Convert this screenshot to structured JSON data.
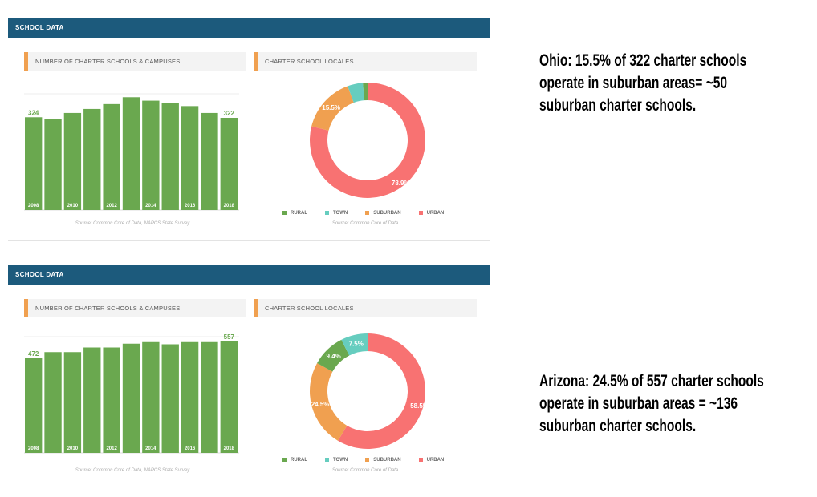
{
  "notes": {
    "ohio": [
      "Ohio: 15.5% of 322 charter schools",
      "operate in suburban areas= ~50",
      "suburban charter schools."
    ],
    "arizona": [
      "Arizona: 24.5% of 557 charter schools",
      "operate in suburban areas = ~136",
      "suburban charter schools."
    ]
  },
  "colors": {
    "header": "#1c5a7c",
    "bar": "#6aa84f",
    "rural": "#6aa84f",
    "town": "#66cdbf",
    "suburban": "#f0a050",
    "urban": "#f87272"
  },
  "panels": [
    {
      "header": "SCHOOL DATA",
      "bar_title": "NUMBER OF CHARTER SCHOOLS & CAMPUSES",
      "pie_title": "CHARTER SCHOOL LOCALES",
      "bar_source": "Source: Common Core of Data, NAPCS State Survey",
      "pie_source": "Source: Common Core of Data"
    },
    {
      "header": "SCHOOL DATA",
      "bar_title": "NUMBER OF CHARTER SCHOOLS & CAMPUSES",
      "pie_title": "CHARTER SCHOOL LOCALES",
      "bar_source": "Source: Common Core of Data, NAPCS State Survey",
      "pie_source": "Source: Common Core of Data"
    }
  ],
  "chart_data": [
    {
      "type": "bar",
      "title": "NUMBER OF CHARTER SCHOOLS & CAMPUSES",
      "state": "Ohio",
      "categories": [
        "2008",
        "2009",
        "2010",
        "2011",
        "2012",
        "2013",
        "2014",
        "2015",
        "2016",
        "2017",
        "2018"
      ],
      "tick_labels": [
        "2008",
        "",
        "2010",
        "",
        "2012",
        "",
        "2014",
        "",
        "2016",
        "",
        "2018"
      ],
      "values": [
        324,
        319,
        339,
        353,
        370,
        394,
        382,
        375,
        363,
        339,
        322
      ],
      "data_labels": [
        "324",
        "",
        "",
        "",
        "",
        "",
        "",
        "",
        "",
        "",
        "322"
      ],
      "ylim": [
        0,
        420
      ]
    },
    {
      "type": "pie",
      "title": "CHARTER SCHOOL LOCALES",
      "state": "Ohio",
      "categories": [
        "RURAL",
        "TOWN",
        "SUBURBAN",
        "URBAN"
      ],
      "values": [
        1.3,
        4.3,
        15.5,
        78.9
      ],
      "data_labels": [
        "",
        "",
        "15.5%",
        "78.9%"
      ]
    },
    {
      "type": "bar",
      "title": "NUMBER OF CHARTER SCHOOLS & CAMPUSES",
      "state": "Arizona",
      "categories": [
        "2008",
        "2009",
        "2010",
        "2011",
        "2012",
        "2013",
        "2014",
        "2015",
        "2016",
        "2017",
        "2018"
      ],
      "tick_labels": [
        "2008",
        "",
        "2010",
        "",
        "2012",
        "",
        "2014",
        "",
        "2016",
        "",
        "2018"
      ],
      "values": [
        472,
        503,
        503,
        526,
        526,
        545,
        553,
        542,
        553,
        553,
        557
      ],
      "data_labels": [
        "472",
        "",
        "",
        "",
        "",
        "",
        "",
        "",
        "",
        "",
        "557"
      ],
      "ylim": [
        0,
        600
      ]
    },
    {
      "type": "pie",
      "title": "CHARTER SCHOOL LOCALES",
      "state": "Arizona",
      "categories": [
        "RURAL",
        "TOWN",
        "SUBURBAN",
        "URBAN"
      ],
      "values": [
        9.4,
        7.5,
        24.5,
        58.5
      ],
      "data_labels": [
        "9.4%",
        "7.5%",
        "24.5%",
        "58.5%"
      ]
    }
  ]
}
